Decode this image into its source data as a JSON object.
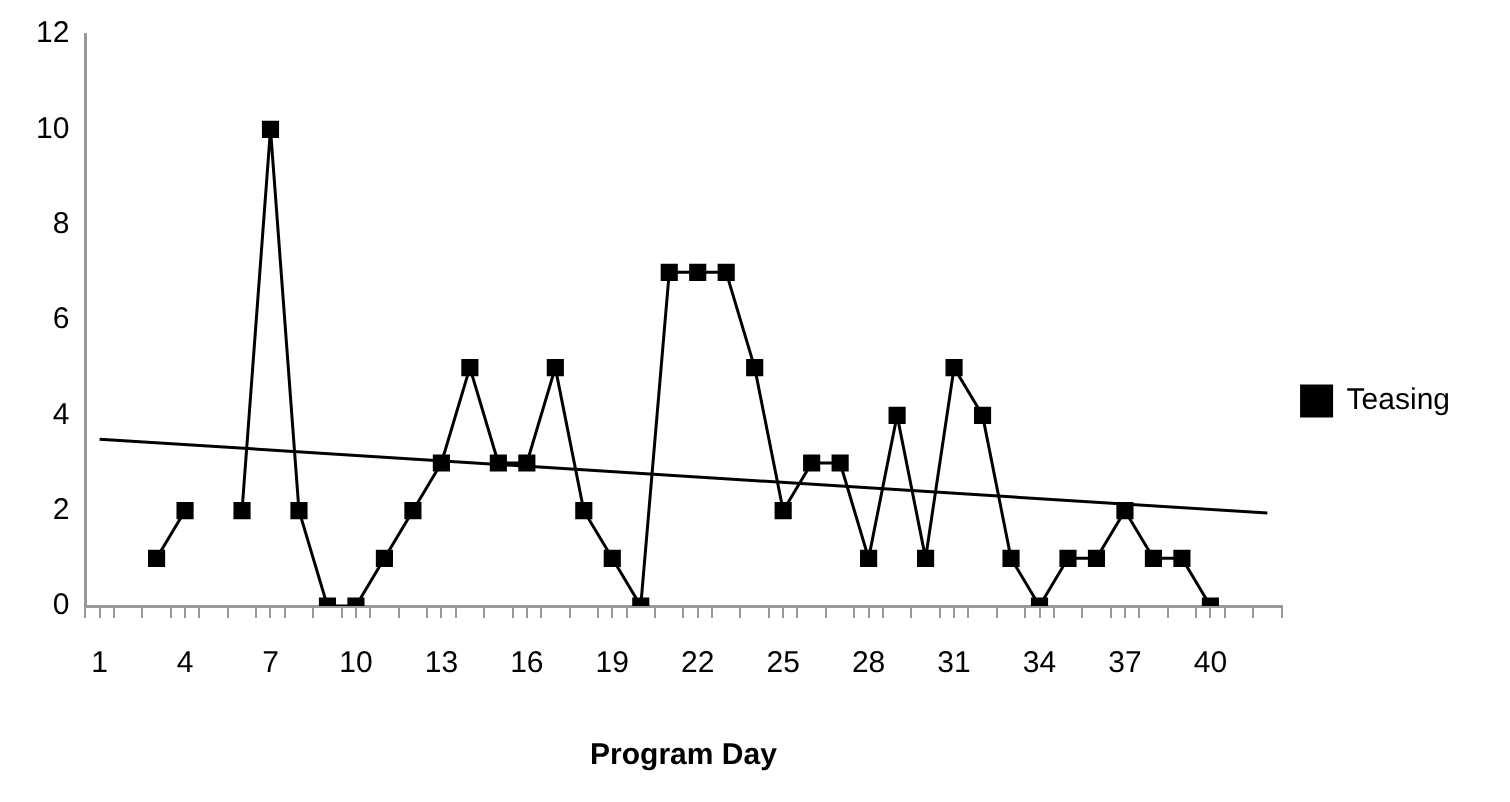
{
  "chart_data": {
    "type": "line",
    "xlabel": "Program Day",
    "x": [
      3,
      4,
      5,
      6,
      7,
      8,
      9,
      10,
      11,
      12,
      13,
      14,
      15,
      16,
      17,
      18,
      19,
      20,
      21,
      22,
      23,
      24,
      25,
      26,
      27,
      28,
      29,
      30,
      31,
      32,
      33,
      34,
      35,
      36,
      37,
      38,
      39,
      40
    ],
    "series": [
      {
        "name": "Teasing",
        "color": "#000000",
        "marker": "square",
        "values": [
          1,
          2,
          null,
          2,
          10,
          2,
          0,
          0,
          1,
          2,
          3,
          5,
          3,
          3,
          5,
          2,
          1,
          0,
          7,
          7,
          7,
          5,
          2,
          3,
          3,
          1,
          4,
          1,
          5,
          4,
          1,
          0,
          1,
          1,
          2,
          1,
          1,
          0
        ]
      },
      {
        "type": "line",
        "color": "#000000",
        "marker": "none",
        "x": [
          1,
          42
        ],
        "values": [
          3.5,
          1.95
        ]
      }
    ],
    "xlim": [
      0.5,
      42.5
    ],
    "xticks": [
      {
        "value": 0.5,
        "label": null
      },
      1,
      {
        "value": 1.5,
        "label": null
      },
      {
        "value": 2.5,
        "label": null
      },
      {
        "value": 3.5,
        "label": null
      },
      4,
      {
        "value": 4.5,
        "label": null
      },
      {
        "value": 5.5,
        "label": null
      },
      {
        "value": 6.5,
        "label": null
      },
      7,
      {
        "value": 7.5,
        "label": null
      },
      {
        "value": 8.5,
        "label": null
      },
      {
        "value": 9.5,
        "label": null
      },
      10,
      {
        "value": 10.5,
        "label": null
      },
      {
        "value": 11.5,
        "label": null
      },
      {
        "value": 12.5,
        "label": null
      },
      13,
      {
        "value": 13.5,
        "label": null
      },
      {
        "value": 14.5,
        "label": null
      },
      {
        "value": 15.5,
        "label": null
      },
      16,
      {
        "value": 16.5,
        "label": null
      },
      {
        "value": 17.5,
        "label": null
      },
      {
        "value": 18.5,
        "label": null
      },
      19,
      {
        "value": 19.5,
        "label": null
      },
      {
        "value": 20.5,
        "label": null
      },
      {
        "value": 21.5,
        "label": null
      },
      22,
      {
        "value": 22.5,
        "label": null
      },
      {
        "value": 23.5,
        "label": null
      },
      {
        "value": 24.5,
        "label": null
      },
      25,
      {
        "value": 25.5,
        "label": null
      },
      {
        "value": 26.5,
        "label": null
      },
      {
        "value": 27.5,
        "label": null
      },
      28,
      {
        "value": 28.5,
        "label": null
      },
      {
        "value": 29.5,
        "label": null
      },
      {
        "value": 30.5,
        "label": null
      },
      31,
      {
        "value": 31.5,
        "label": null
      },
      {
        "value": 32.5,
        "label": null
      },
      {
        "value": 33.5,
        "label": null
      },
      34,
      {
        "value": 34.5,
        "label": null
      },
      {
        "value": 35.5,
        "label": null
      },
      {
        "value": 36.5,
        "label": null
      },
      37,
      {
        "value": 37.5,
        "label": null
      },
      {
        "value": 38.5,
        "label": null
      },
      {
        "value": 39.5,
        "label": null
      },
      40,
      {
        "value": 40.5,
        "label": null
      },
      {
        "value": 41.5,
        "label": null
      },
      {
        "value": 42.5,
        "label": null
      }
    ],
    "ylim": [
      0,
      12
    ],
    "yticks": [
      0,
      2,
      4,
      6,
      8,
      10,
      12
    ],
    "grid": false,
    "legend": "right",
    "line_style": "solid"
  }
}
